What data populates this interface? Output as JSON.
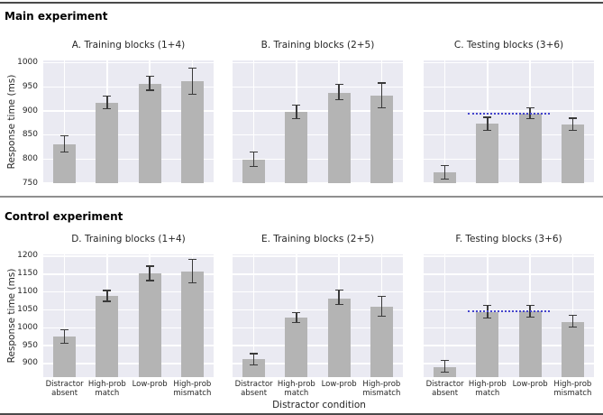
{
  "figure": {
    "top_section_header": "Main experiment",
    "bottom_section_header": "Control experiment",
    "y_axis_label": "Response time (ms)",
    "x_axis_label": "Distractor condition"
  },
  "colors": {
    "plot_background": "#eaeaf2",
    "bar_fill": "#b4b4b4",
    "grid_line": "#ffffff",
    "error_bar": "#3a3a3a",
    "reference_line": "#4444cc",
    "separator_line": "#8f8f8f",
    "frame_line": "#4a4a4a",
    "text": "#262626"
  },
  "chart_data": [
    {
      "panel": "A",
      "type": "bar",
      "section": "Main experiment",
      "title": "A. Training blocks (1+4)",
      "categories": [
        "Distractor\nabsent",
        "High-prob\nmatch",
        "Low-prob",
        "High-prob\nmismatch"
      ],
      "values": [
        831,
        917,
        956,
        962
      ],
      "ci_low": [
        815,
        905,
        943,
        935
      ],
      "ci_high": [
        848,
        931,
        972,
        989
      ],
      "ylabel": "Response time (ms)",
      "ylim": [
        750,
        1005
      ],
      "yticks": [
        750,
        800,
        850,
        900,
        950,
        1000
      ],
      "grid": true,
      "show_ytick_labels": true,
      "show_xtick_labels": false
    },
    {
      "panel": "B",
      "type": "bar",
      "section": "Main experiment",
      "title": "B. Training blocks (2+5)",
      "categories": [
        "Distractor\nabsent",
        "High-prob\nmatch",
        "Low-prob",
        "High-prob\nmismatch"
      ],
      "values": [
        799,
        898,
        938,
        931
      ],
      "ci_low": [
        785,
        884,
        923,
        906
      ],
      "ci_high": [
        815,
        912,
        955,
        958
      ],
      "ylabel": "Response time (ms)",
      "ylim": [
        750,
        1005
      ],
      "yticks": [
        750,
        800,
        850,
        900,
        950,
        1000
      ],
      "grid": true,
      "show_ytick_labels": false,
      "show_xtick_labels": false
    },
    {
      "panel": "C",
      "type": "bar",
      "section": "Main experiment",
      "title": "C. Testing blocks (3+6)",
      "categories": [
        "Distractor\nabsent",
        "High-prob\nmatch",
        "Low-prob",
        "High-prob\nmismatch"
      ],
      "values": [
        772,
        873,
        894,
        872
      ],
      "ci_low": [
        759,
        860,
        884,
        859
      ],
      "ci_high": [
        787,
        887,
        906,
        885
      ],
      "ylabel": "Response time (ms)",
      "ylim": [
        750,
        1005
      ],
      "yticks": [
        750,
        800,
        850,
        900,
        950,
        1000
      ],
      "grid": true,
      "show_ytick_labels": false,
      "show_xtick_labels": false,
      "reference_line": {
        "y": 894,
        "x_start_frac": 0.26,
        "x_end_frac": 0.74,
        "style": "dotted"
      }
    },
    {
      "panel": "D",
      "type": "bar",
      "section": "Control experiment",
      "title": "D. Training blocks (1+4)",
      "categories": [
        "Distractor\nabsent",
        "High-prob\nmatch",
        "Low-prob",
        "High-prob\nmismatch"
      ],
      "values": [
        975,
        1089,
        1152,
        1156
      ],
      "ci_low": [
        956,
        1074,
        1132,
        1126
      ],
      "ci_high": [
        995,
        1104,
        1172,
        1192
      ],
      "ylabel": "Response time (ms)",
      "ylim": [
        862,
        1205
      ],
      "yticks": [
        900,
        950,
        1000,
        1050,
        1100,
        1150,
        1200
      ],
      "grid": true,
      "show_ytick_labels": true,
      "show_xtick_labels": true
    },
    {
      "panel": "E",
      "type": "bar",
      "section": "Control experiment",
      "title": "E. Training blocks (2+5)",
      "categories": [
        "Distractor\nabsent",
        "High-prob\nmatch",
        "Low-prob",
        "High-prob\nmismatch"
      ],
      "values": [
        912,
        1028,
        1082,
        1058
      ],
      "ci_low": [
        896,
        1014,
        1065,
        1032
      ],
      "ci_high": [
        928,
        1043,
        1106,
        1088
      ],
      "ylabel": "Response time (ms)",
      "ylim": [
        862,
        1205
      ],
      "yticks": [
        900,
        950,
        1000,
        1050,
        1100,
        1150,
        1200
      ],
      "grid": true,
      "show_ytick_labels": false,
      "show_xtick_labels": true
    },
    {
      "panel": "F",
      "type": "bar",
      "section": "Control experiment",
      "title": "F. Testing blocks (3+6)",
      "categories": [
        "Distractor\nabsent",
        "High-prob\nmatch",
        "Low-prob",
        "High-prob\nmismatch"
      ],
      "values": [
        890,
        1043,
        1045,
        1017
      ],
      "ci_low": [
        875,
        1027,
        1030,
        1001
      ],
      "ci_high": [
        908,
        1063,
        1063,
        1034
      ],
      "ylabel": "Response time (ms)",
      "ylim": [
        862,
        1205
      ],
      "yticks": [
        900,
        950,
        1000,
        1050,
        1100,
        1150,
        1200
      ],
      "grid": true,
      "show_ytick_labels": false,
      "show_xtick_labels": true,
      "reference_line": {
        "y": 1047,
        "x_start_frac": 0.26,
        "x_end_frac": 0.74,
        "style": "dotted"
      }
    }
  ]
}
